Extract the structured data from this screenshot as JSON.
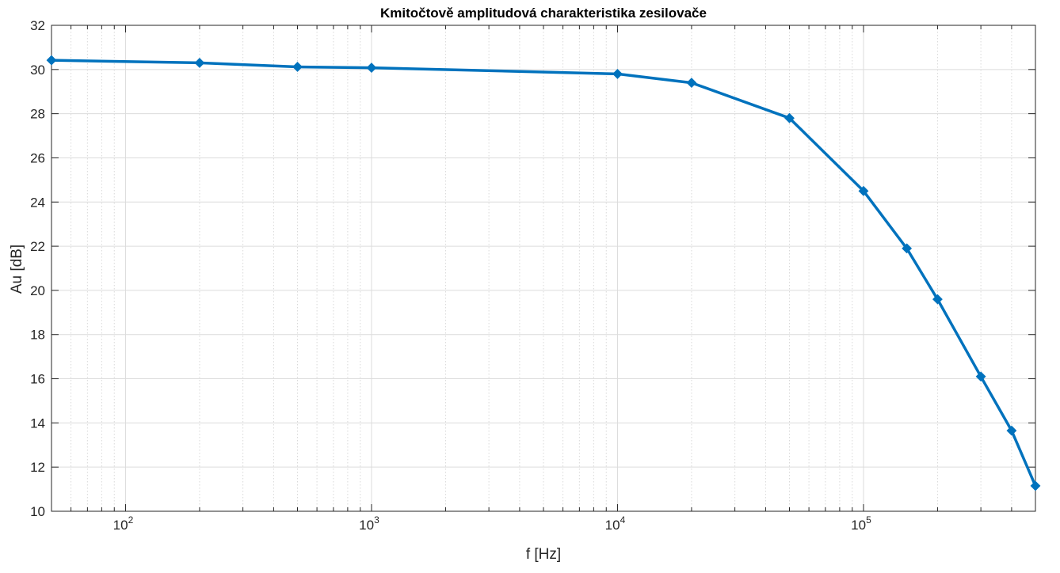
{
  "chart_data": {
    "type": "line",
    "title": "Kmitočtově amplitudová charakteristika zesilovače",
    "xlabel": "f [Hz]",
    "ylabel": "Au [dB]",
    "xscale": "log",
    "xlim": [
      50,
      500000
    ],
    "ylim": [
      10,
      32
    ],
    "grid": true,
    "minor_grid": true,
    "x_ticks": [
      {
        "value": 100,
        "base": "10",
        "exp": "2"
      },
      {
        "value": 1000,
        "base": "10",
        "exp": "3"
      },
      {
        "value": 10000,
        "base": "10",
        "exp": "4"
      },
      {
        "value": 100000,
        "base": "10",
        "exp": "5"
      }
    ],
    "y_ticks": [
      10,
      12,
      14,
      16,
      18,
      20,
      22,
      24,
      26,
      28,
      30,
      32
    ],
    "series": [
      {
        "color": "#0072BD",
        "marker": "diamond",
        "x": [
          50,
          200,
          500,
          1000,
          10000,
          20000,
          50000,
          100000,
          150000,
          200000,
          300000,
          400000,
          500000
        ],
        "y": [
          30.42,
          30.3,
          30.12,
          30.08,
          29.8,
          29.4,
          27.8,
          24.5,
          21.9,
          19.6,
          16.1,
          13.65,
          11.15
        ]
      }
    ]
  }
}
